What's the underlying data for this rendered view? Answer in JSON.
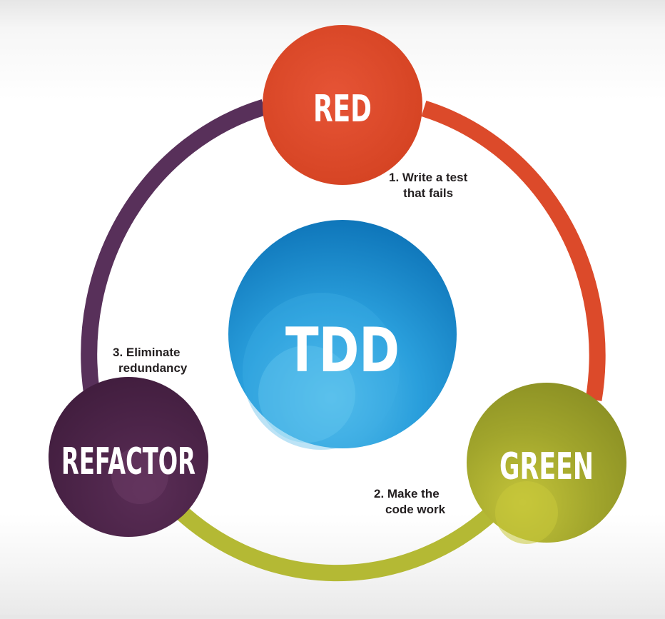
{
  "center": {
    "label": "TDD",
    "color": "#1d8fd0"
  },
  "nodes": [
    {
      "id": "red",
      "label": "RED",
      "color": "#d9472b"
    },
    {
      "id": "green",
      "label": "GREEN",
      "color": "#9aa12a"
    },
    {
      "id": "refactor",
      "label": "REFACTOR",
      "color": "#4a2448"
    }
  ],
  "steps": [
    {
      "lines": [
        "1. Write a test",
        "that fails"
      ]
    },
    {
      "lines": [
        "2. Make the",
        "code work"
      ]
    },
    {
      "lines": [
        "3. Eliminate",
        "redundancy"
      ]
    }
  ],
  "arc_colors": {
    "red_to_green": "#dc4a2a",
    "green_to_refactor": "#b4b934",
    "refactor_to_red": "#58305a"
  }
}
